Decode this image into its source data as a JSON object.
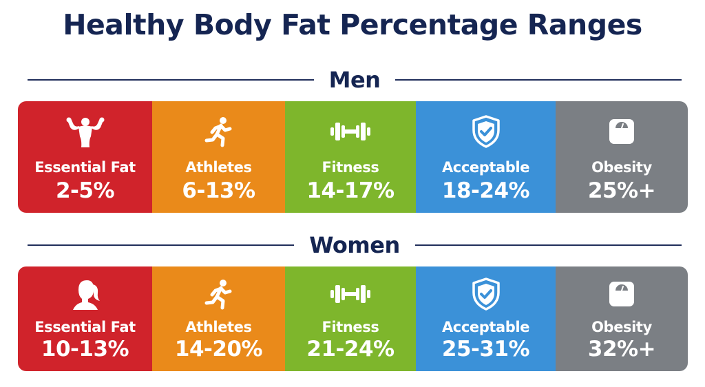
{
  "title": "Healthy Body Fat Percentage Ranges",
  "colors": {
    "essential": "#d0232b",
    "athletes": "#ea8a1a",
    "fitness": "#7eb62c",
    "acceptable": "#3b91d8",
    "obesity": "#7b7f84",
    "heading": "#152552"
  },
  "chart_data": {
    "type": "table",
    "title": "Healthy Body Fat Percentage Ranges",
    "categories": [
      "Essential Fat",
      "Athletes",
      "Fitness",
      "Acceptable",
      "Obesity"
    ],
    "series": [
      {
        "name": "Men",
        "values": [
          "2-5%",
          "6-13%",
          "14-17%",
          "18-24%",
          "25%+"
        ],
        "icons": [
          "flexing-man-icon",
          "running-person-icon",
          "dumbbell-icon",
          "shield-check-icon",
          "scale-icon"
        ]
      },
      {
        "name": "Women",
        "values": [
          "10-13%",
          "14-20%",
          "21-24%",
          "25-31%",
          "32%+"
        ],
        "icons": [
          "woman-head-icon",
          "running-person-icon",
          "dumbbell-icon",
          "shield-check-icon",
          "scale-icon"
        ]
      }
    ]
  }
}
